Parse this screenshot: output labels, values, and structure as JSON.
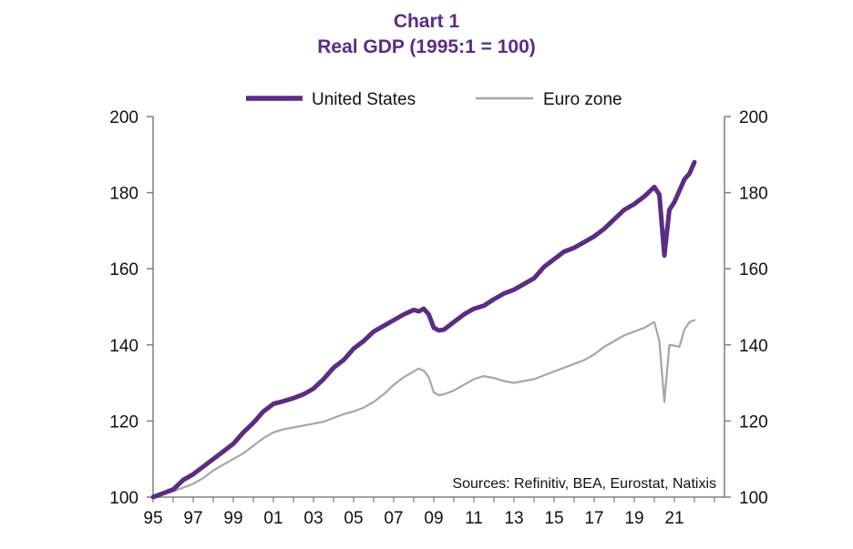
{
  "chart_data": {
    "type": "line",
    "title": "Chart 1",
    "subtitle": "Real GDP (1995:1 = 100)",
    "source": "Sources: Refinitiv, BEA, Eurostat, Natixis",
    "legend_position": "top-center",
    "grid": false,
    "xlabel": "",
    "ylabel": "",
    "xlim": [
      1995,
      2023.5
    ],
    "ylim": [
      100,
      200
    ],
    "y_ticks": [
      100,
      120,
      140,
      160,
      180,
      200
    ],
    "y_ticks_right": [
      100,
      120,
      140,
      160,
      180,
      200
    ],
    "x_ticks": [
      {
        "value": 1995,
        "label": "95"
      },
      {
        "value": 1997,
        "label": "97"
      },
      {
        "value": 1999,
        "label": "99"
      },
      {
        "value": 2001,
        "label": "01"
      },
      {
        "value": 2003,
        "label": "03"
      },
      {
        "value": 2005,
        "label": "05"
      },
      {
        "value": 2007,
        "label": "07"
      },
      {
        "value": 2009,
        "label": "09"
      },
      {
        "value": 2011,
        "label": "11"
      },
      {
        "value": 2013,
        "label": "13"
      },
      {
        "value": 2015,
        "label": "15"
      },
      {
        "value": 2017,
        "label": "17"
      },
      {
        "value": 2019,
        "label": "19"
      },
      {
        "value": 2021,
        "label": "21"
      }
    ],
    "series": [
      {
        "name": "United States",
        "color": "#5b2c83",
        "points": [
          [
            1995.0,
            100.0
          ],
          [
            1995.5,
            101.0
          ],
          [
            1996.0,
            102.0
          ],
          [
            1996.5,
            104.5
          ],
          [
            1997.0,
            106.0
          ],
          [
            1997.5,
            108.0
          ],
          [
            1998.0,
            110.0
          ],
          [
            1998.5,
            112.0
          ],
          [
            1999.0,
            114.0
          ],
          [
            1999.5,
            117.0
          ],
          [
            2000.0,
            119.5
          ],
          [
            2000.5,
            122.5
          ],
          [
            2001.0,
            124.5
          ],
          [
            2001.5,
            125.2
          ],
          [
            2002.0,
            126.0
          ],
          [
            2002.5,
            127.0
          ],
          [
            2003.0,
            128.5
          ],
          [
            2003.5,
            131.0
          ],
          [
            2004.0,
            134.0
          ],
          [
            2004.5,
            136.0
          ],
          [
            2005.0,
            139.0
          ],
          [
            2005.5,
            141.0
          ],
          [
            2006.0,
            143.5
          ],
          [
            2006.5,
            145.0
          ],
          [
            2007.0,
            146.5
          ],
          [
            2007.5,
            148.0
          ],
          [
            2008.0,
            149.2
          ],
          [
            2008.25,
            148.8
          ],
          [
            2008.5,
            149.5
          ],
          [
            2008.75,
            148.0
          ],
          [
            2009.0,
            144.5
          ],
          [
            2009.25,
            143.8
          ],
          [
            2009.5,
            144.0
          ],
          [
            2010.0,
            146.0
          ],
          [
            2010.5,
            148.0
          ],
          [
            2011.0,
            149.5
          ],
          [
            2011.5,
            150.3
          ],
          [
            2012.0,
            152.0
          ],
          [
            2012.5,
            153.5
          ],
          [
            2013.0,
            154.5
          ],
          [
            2013.5,
            156.0
          ],
          [
            2014.0,
            157.5
          ],
          [
            2014.5,
            160.5
          ],
          [
            2015.0,
            162.5
          ],
          [
            2015.5,
            164.5
          ],
          [
            2016.0,
            165.5
          ],
          [
            2016.5,
            167.0
          ],
          [
            2017.0,
            168.5
          ],
          [
            2017.5,
            170.5
          ],
          [
            2018.0,
            173.0
          ],
          [
            2018.5,
            175.5
          ],
          [
            2019.0,
            177.0
          ],
          [
            2019.5,
            179.0
          ],
          [
            2020.0,
            181.5
          ],
          [
            2020.25,
            179.5
          ],
          [
            2020.5,
            163.5
          ],
          [
            2020.75,
            175.5
          ],
          [
            2021.0,
            177.5
          ],
          [
            2021.25,
            180.5
          ],
          [
            2021.5,
            183.5
          ],
          [
            2021.75,
            185.0
          ],
          [
            2022.0,
            188.0
          ]
        ]
      },
      {
        "name": "Euro zone",
        "color": "#a6a6a6",
        "points": [
          [
            1995.0,
            100.0
          ],
          [
            1995.5,
            100.8
          ],
          [
            1996.0,
            101.5
          ],
          [
            1996.5,
            102.5
          ],
          [
            1997.0,
            103.5
          ],
          [
            1997.5,
            105.0
          ],
          [
            1998.0,
            107.0
          ],
          [
            1998.5,
            108.5
          ],
          [
            1999.0,
            110.0
          ],
          [
            1999.5,
            111.5
          ],
          [
            2000.0,
            113.5
          ],
          [
            2000.5,
            115.5
          ],
          [
            2001.0,
            117.0
          ],
          [
            2001.5,
            117.8
          ],
          [
            2002.0,
            118.3
          ],
          [
            2002.5,
            118.8
          ],
          [
            2003.0,
            119.3
          ],
          [
            2003.5,
            119.8
          ],
          [
            2004.0,
            120.8
          ],
          [
            2004.5,
            121.8
          ],
          [
            2005.0,
            122.5
          ],
          [
            2005.5,
            123.5
          ],
          [
            2006.0,
            125.0
          ],
          [
            2006.5,
            127.0
          ],
          [
            2007.0,
            129.5
          ],
          [
            2007.5,
            131.5
          ],
          [
            2008.0,
            133.0
          ],
          [
            2008.25,
            133.8
          ],
          [
            2008.5,
            133.2
          ],
          [
            2008.75,
            131.5
          ],
          [
            2009.0,
            127.5
          ],
          [
            2009.25,
            126.8
          ],
          [
            2009.5,
            127.0
          ],
          [
            2010.0,
            128.0
          ],
          [
            2010.5,
            129.5
          ],
          [
            2011.0,
            131.0
          ],
          [
            2011.5,
            131.8
          ],
          [
            2012.0,
            131.3
          ],
          [
            2012.5,
            130.5
          ],
          [
            2013.0,
            130.0
          ],
          [
            2013.5,
            130.5
          ],
          [
            2014.0,
            131.0
          ],
          [
            2014.5,
            132.0
          ],
          [
            2015.0,
            133.0
          ],
          [
            2015.5,
            134.0
          ],
          [
            2016.0,
            135.0
          ],
          [
            2016.5,
            136.0
          ],
          [
            2017.0,
            137.5
          ],
          [
            2017.5,
            139.5
          ],
          [
            2018.0,
            141.0
          ],
          [
            2018.5,
            142.5
          ],
          [
            2019.0,
            143.5
          ],
          [
            2019.5,
            144.5
          ],
          [
            2020.0,
            146.0
          ],
          [
            2020.25,
            141.0
          ],
          [
            2020.5,
            125.0
          ],
          [
            2020.75,
            140.0
          ],
          [
            2021.0,
            139.8
          ],
          [
            2021.25,
            139.5
          ],
          [
            2021.5,
            144.0
          ],
          [
            2021.75,
            146.0
          ],
          [
            2022.0,
            146.5
          ]
        ]
      }
    ]
  }
}
